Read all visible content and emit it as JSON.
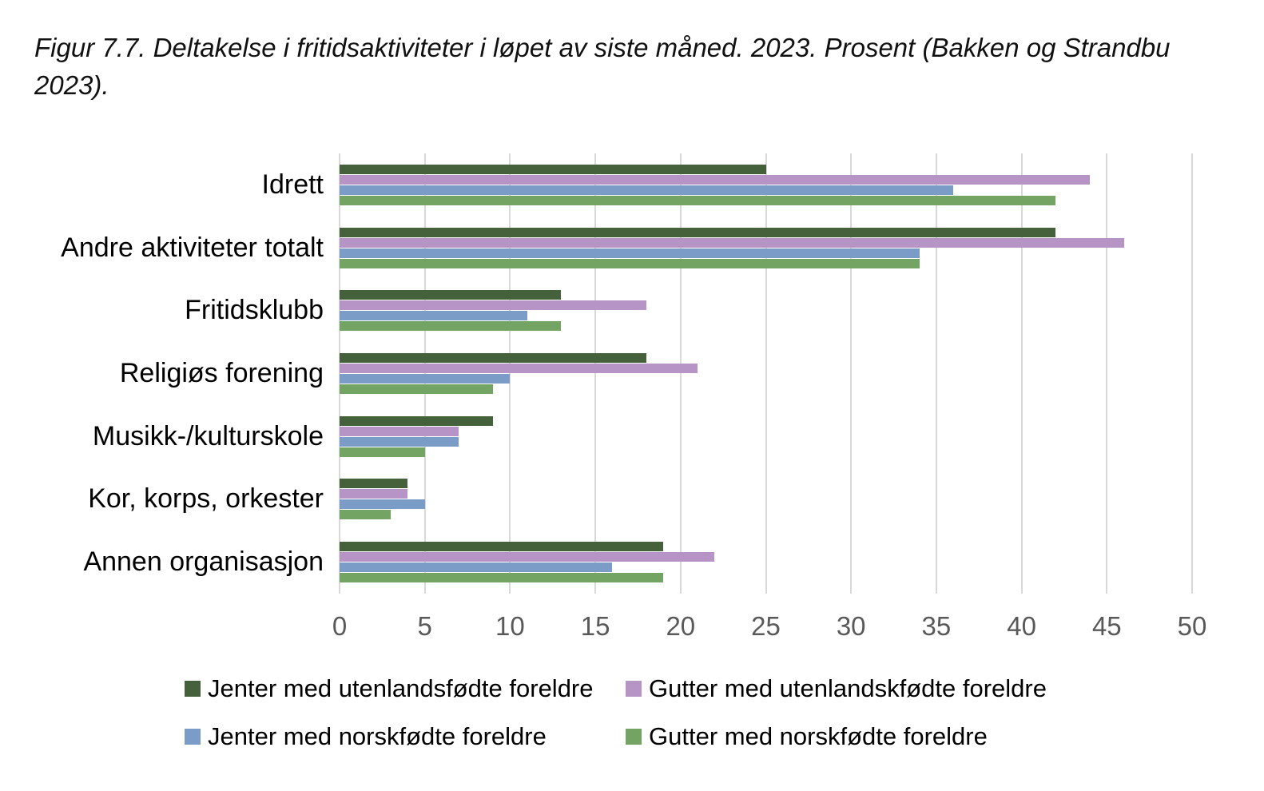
{
  "figure": {
    "title": "Figur 7.7. Deltakelse i fritidsaktiviteter i løpet av siste måned. 2023. Prosent (Bakken og Strandbu 2023)."
  },
  "chart_data": {
    "type": "bar",
    "orientation": "horizontal",
    "title": "Figur 7.7. Deltakelse i fritidsaktiviteter i løpet av siste måned. 2023. Prosent (Bakken og Strandbu 2023).",
    "categories": [
      "Idrett",
      "Andre aktiviteter totalt",
      "Fritidsklubb",
      "Religiøs forening",
      "Musikk-/kulturskole",
      "Kor, korps, orkester",
      "Annen organisasjon"
    ],
    "series": [
      {
        "name": "Jenter med utenlandsfødte foreldre",
        "color": "#44613C",
        "values": [
          25,
          42,
          13,
          18,
          9,
          4,
          19
        ]
      },
      {
        "name": "Gutter med utenlandskfødte foreldre",
        "color": "#B794C6",
        "values": [
          44,
          46,
          18,
          21,
          7,
          4,
          22
        ]
      },
      {
        "name": "Jenter med norskfødte foreldre",
        "color": "#7B9CC6",
        "values": [
          36,
          34,
          11,
          10,
          7,
          5,
          16
        ]
      },
      {
        "name": "Gutter med norskfødte foreldre",
        "color": "#74A463",
        "values": [
          42,
          34,
          13,
          9,
          5,
          3,
          19
        ]
      }
    ],
    "xlim": [
      0,
      50
    ],
    "xticks": [
      0,
      5,
      10,
      15,
      20,
      25,
      30,
      35,
      40,
      45,
      50
    ],
    "xlabel": "",
    "ylabel": "",
    "grid": "vertical",
    "gridline_color": "#D9D9D9",
    "tick_label_color": "#595959",
    "legend_position": "bottom"
  }
}
